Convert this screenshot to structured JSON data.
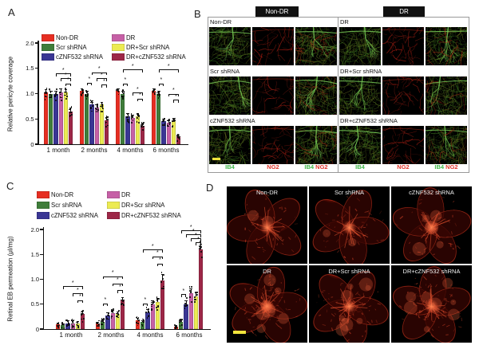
{
  "panels": {
    "A": {
      "label": "A"
    },
    "B": {
      "label": "B"
    },
    "C": {
      "label": "C"
    },
    "D": {
      "label": "D"
    }
  },
  "legend": {
    "items": [
      {
        "label": "Non-DR",
        "color": "#e62e22"
      },
      {
        "label": "Scr shRNA",
        "color": "#3f7d3a"
      },
      {
        "label": "cZNF532 shRNA",
        "color": "#3a3694"
      },
      {
        "label": "DR",
        "color": "#c660a6"
      },
      {
        "label": "DR+Scr shRNA",
        "color": "#eceb52"
      },
      {
        "label": "DR+cZNF532 shRNA",
        "color": "#9d2747"
      }
    ]
  },
  "chart_data": [
    {
      "id": "A",
      "type": "bar",
      "ylabel": "Relative pericyte coverage",
      "ylim": [
        0,
        2
      ],
      "yticks": [
        "0",
        "0.5",
        "1.0",
        "1.5",
        "2.0"
      ],
      "categories": [
        "1 month",
        "2 months",
        "4 months",
        "6 months"
      ],
      "legend_position": "top",
      "grid": false,
      "series": [
        {
          "name": "Non-DR",
          "color": "#e62e22",
          "values": [
            1.02,
            1.05,
            1.05,
            1.05
          ],
          "errors": [
            0.06,
            0.06,
            0.05,
            0.05
          ]
        },
        {
          "name": "Scr shRNA",
          "color": "#3f7d3a",
          "values": [
            1.0,
            1.0,
            1.0,
            1.0
          ],
          "errors": [
            0.06,
            0.05,
            0.05,
            0.05
          ]
        },
        {
          "name": "cZNF532 shRNA",
          "color": "#3a3694",
          "values": [
            1.0,
            0.78,
            0.55,
            0.45
          ],
          "errors": [
            0.06,
            0.06,
            0.06,
            0.05
          ]
        },
        {
          "name": "DR",
          "color": "#c660a6",
          "values": [
            1.02,
            0.73,
            0.52,
            0.42
          ],
          "errors": [
            0.08,
            0.06,
            0.06,
            0.05
          ]
        },
        {
          "name": "DR+Scr shRNA",
          "color": "#eceb52",
          "values": [
            1.02,
            0.78,
            0.55,
            0.45
          ],
          "errors": [
            0.06,
            0.06,
            0.06,
            0.05
          ]
        },
        {
          "name": "DR+cZNF532 shRNA",
          "color": "#9d2747",
          "values": [
            0.65,
            0.47,
            0.36,
            0.15
          ],
          "errors": [
            0.07,
            0.07,
            0.05,
            0.04
          ]
        }
      ],
      "significance": [
        {
          "group": 0,
          "from": 2,
          "to": 5,
          "y": 1.4,
          "label": "*"
        },
        {
          "group": 0,
          "from": 3,
          "to": 5,
          "y": 1.3,
          "label": "*"
        },
        {
          "group": 0,
          "from": 4,
          "to": 5,
          "y": 1.2,
          "label": "*"
        },
        {
          "group": 1,
          "from": 1,
          "to": 2,
          "y": 1.22,
          "label": "*"
        },
        {
          "group": 1,
          "from": 2,
          "to": 5,
          "y": 1.42,
          "label": "*"
        },
        {
          "group": 1,
          "from": 3,
          "to": 5,
          "y": 1.3,
          "label": "*"
        },
        {
          "group": 1,
          "from": 4,
          "to": 5,
          "y": 1.18,
          "label": "*"
        },
        {
          "group": 2,
          "from": 1,
          "to": 2,
          "y": 1.2,
          "label": "*"
        },
        {
          "group": 2,
          "from": 1,
          "to": 5,
          "y": 1.48,
          "label": "*"
        },
        {
          "group": 2,
          "from": 3,
          "to": 5,
          "y": 1.02,
          "label": "*"
        },
        {
          "group": 2,
          "from": 4,
          "to": 5,
          "y": 0.9,
          "label": "*"
        },
        {
          "group": 3,
          "from": 1,
          "to": 2,
          "y": 1.2,
          "label": "*"
        },
        {
          "group": 3,
          "from": 1,
          "to": 5,
          "y": 1.48,
          "label": "*"
        },
        {
          "group": 3,
          "from": 3,
          "to": 5,
          "y": 1.0,
          "label": "*"
        },
        {
          "group": 3,
          "from": 4,
          "to": 5,
          "y": 0.88,
          "label": "*"
        }
      ]
    },
    {
      "id": "C",
      "type": "bar",
      "ylabel": "Retinal EB permeation (μl/mg)",
      "ylim": [
        0,
        2
      ],
      "yticks": [
        "0",
        "0.5",
        "1.0",
        "1.5",
        "2.0"
      ],
      "categories": [
        "1 month",
        "2 months",
        "4 months",
        "6 months"
      ],
      "legend_position": "top",
      "grid": false,
      "series": [
        {
          "name": "Non-DR",
          "color": "#e62e22",
          "values": [
            0.09,
            0.11,
            0.17,
            0.05
          ],
          "errors": [
            0.04,
            0.04,
            0.05,
            0.03
          ]
        },
        {
          "name": "Scr shRNA",
          "color": "#3f7d3a",
          "values": [
            0.08,
            0.15,
            0.14,
            0.15
          ],
          "errors": [
            0.04,
            0.05,
            0.04,
            0.05
          ]
        },
        {
          "name": "cZNF532 shRNA",
          "color": "#3a3694",
          "values": [
            0.12,
            0.28,
            0.33,
            0.5
          ],
          "errors": [
            0.05,
            0.06,
            0.07,
            0.08
          ]
        },
        {
          "name": "DR",
          "color": "#c660a6",
          "values": [
            0.12,
            0.32,
            0.5,
            0.72
          ],
          "errors": [
            0.05,
            0.06,
            0.08,
            0.09
          ]
        },
        {
          "name": "DR+Scr shRNA",
          "color": "#eceb52",
          "values": [
            0.11,
            0.3,
            0.55,
            0.65
          ],
          "errors": [
            0.05,
            0.06,
            0.08,
            0.08
          ]
        },
        {
          "name": "DR+cZNF532 shRNA",
          "color": "#9d2747",
          "values": [
            0.3,
            0.57,
            0.98,
            1.6
          ],
          "errors": [
            0.07,
            0.07,
            0.12,
            0.12
          ]
        }
      ],
      "significance": [
        {
          "group": 0,
          "from": 1,
          "to": 5,
          "y": 0.86,
          "label": "*"
        },
        {
          "group": 0,
          "from": 3,
          "to": 5,
          "y": 0.72,
          "label": "*"
        },
        {
          "group": 0,
          "from": 4,
          "to": 5,
          "y": 0.58,
          "label": "*"
        },
        {
          "group": 1,
          "from": 1,
          "to": 2,
          "y": 0.52,
          "label": "*"
        },
        {
          "group": 1,
          "from": 1,
          "to": 5,
          "y": 1.06,
          "label": "*"
        },
        {
          "group": 1,
          "from": 3,
          "to": 5,
          "y": 0.92,
          "label": "*"
        },
        {
          "group": 1,
          "from": 4,
          "to": 5,
          "y": 0.78,
          "label": "*"
        },
        {
          "group": 2,
          "from": 1,
          "to": 2,
          "y": 0.52,
          "label": "*"
        },
        {
          "group": 2,
          "from": 1,
          "to": 5,
          "y": 1.6,
          "label": "*"
        },
        {
          "group": 2,
          "from": 3,
          "to": 5,
          "y": 1.46,
          "label": "*"
        },
        {
          "group": 2,
          "from": 4,
          "to": 5,
          "y": 1.32,
          "label": "*"
        },
        {
          "group": 3,
          "from": 1,
          "to": 2,
          "y": 0.7,
          "label": "*"
        },
        {
          "group": 3,
          "from": 1,
          "to": 5,
          "y": 1.98,
          "label": "*"
        },
        {
          "group": 3,
          "from": 2,
          "to": 5,
          "y": 1.9,
          "label": "*"
        },
        {
          "group": 3,
          "from": 3,
          "to": 5,
          "y": 1.82,
          "label": "*"
        },
        {
          "group": 3,
          "from": 4,
          "to": 5,
          "y": 1.74,
          "label": "*"
        }
      ]
    }
  ],
  "panelB": {
    "column_headers": [
      "Non-DR",
      "DR"
    ],
    "left_rows": [
      "Non-DR",
      "Scr shRNA",
      "cZNF532 shRNA"
    ],
    "right_rows": [
      "DR",
      "DR+Scr shRNA",
      "DR+cZNF532 shRNA"
    ],
    "channels": {
      "ib4": "IB4",
      "ng2": "NG2"
    },
    "ib4_color": "#41b649",
    "ng2_color": "#e3352b"
  },
  "panelD": {
    "cells": [
      "Non-DR",
      "Scr shRNA",
      "cZNF532 shRNA",
      "DR",
      "DR+Scr shRNA",
      "DR+cZNF532 shRNA"
    ]
  },
  "colors": {
    "scale_bar": "#f0e43c",
    "header_bg": "#111111",
    "panel_border": "#999999"
  }
}
